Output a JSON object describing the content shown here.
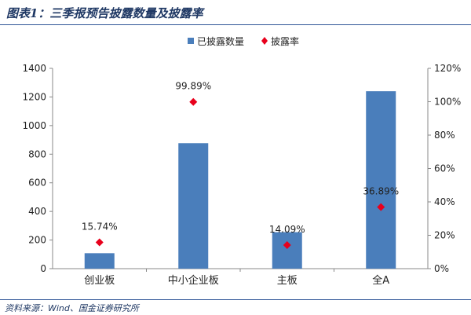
{
  "header": {
    "title": "图表1：三季报预告披露数量及披露率"
  },
  "footer": {
    "source": "资料来源：Wind、国金证券研究所"
  },
  "colors": {
    "bar": "#4a7ebb",
    "marker": "#e8001c",
    "title": "#1f3864",
    "rule": "#2f5597"
  },
  "chart_data": {
    "type": "bar",
    "categories": [
      "创业板",
      "中小企业板",
      "主板",
      "全A"
    ],
    "series": [
      {
        "name": "已披露数量",
        "type": "bar",
        "axis": "left",
        "values": [
          108,
          877,
          255,
          1240
        ]
      },
      {
        "name": "披露率",
        "type": "scatter",
        "axis": "right",
        "values": [
          15.74,
          99.89,
          14.09,
          36.89
        ],
        "labels": [
          "15.74%",
          "99.89%",
          "14.09%",
          "36.89%"
        ]
      }
    ],
    "y_left": {
      "ticks": [
        "0",
        "200",
        "400",
        "600",
        "800",
        "1000",
        "1200",
        "1400"
      ],
      "range": [
        0,
        1400
      ]
    },
    "y_right": {
      "ticks": [
        "0%",
        "20%",
        "40%",
        "60%",
        "80%",
        "100%",
        "120%"
      ],
      "range": [
        0,
        120
      ]
    },
    "legend": {
      "position": "top"
    },
    "grid": false
  }
}
